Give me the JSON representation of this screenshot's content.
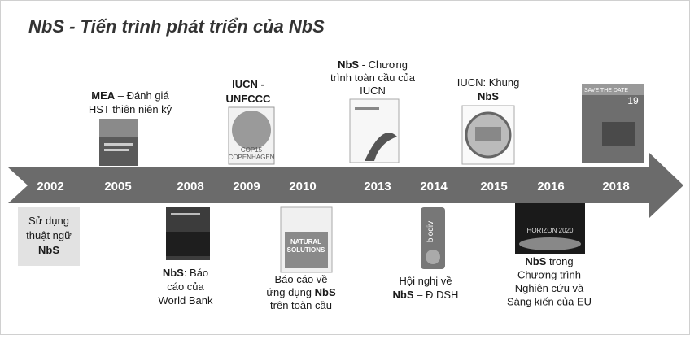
{
  "title": "NbS - Tiến trình phát triển của NbS",
  "years": [
    "2002",
    "2005",
    "2008",
    "2009",
    "2010",
    "2013",
    "2014",
    "2015",
    "2016",
    "2018"
  ],
  "milestones": [
    {
      "lines": [
        [
          {
            "text": "Sử dụng"
          }
        ],
        [
          {
            "text": "thuật ngữ"
          }
        ],
        [
          {
            "text": "NbS",
            "bold": true
          }
        ]
      ]
    },
    {
      "lines": [
        [
          {
            "text": "MEA",
            "bold": true
          },
          {
            "text": " – Đánh giá"
          }
        ],
        [
          {
            "text": "HST thiên niên kỷ"
          }
        ]
      ]
    },
    {
      "lines": [
        [
          {
            "text": "NbS",
            "bold": true
          },
          {
            "text": ": Báo"
          }
        ],
        [
          {
            "text": "cáo của"
          }
        ],
        [
          {
            "text": "World Bank"
          }
        ]
      ]
    },
    {
      "lines": [
        [
          {
            "text": "IUCN -",
            "bold": true
          }
        ],
        [
          {
            "text": "UNFCCC",
            "bold": true
          }
        ]
      ]
    },
    {
      "lines": [
        [
          {
            "text": "Báo cáo về"
          }
        ],
        [
          {
            "text": "ứng dụng "
          },
          {
            "text": "NbS",
            "bold": true
          }
        ],
        [
          {
            "text": "trên toàn cầu"
          }
        ]
      ]
    },
    {
      "lines": [
        [
          {
            "text": "NbS",
            "bold": true
          },
          {
            "text": " - Chương"
          }
        ],
        [
          {
            "text": "trình toàn cầu của"
          }
        ],
        [
          {
            "text": "IUCN"
          }
        ]
      ]
    },
    {
      "lines": [
        [
          {
            "text": "Hội nghị về"
          }
        ],
        [
          {
            "text": "NbS",
            "bold": true
          },
          {
            "text": " – Đ DSH"
          }
        ]
      ]
    },
    {
      "lines": [
        [
          {
            "text": "IUCN: Khung"
          }
        ],
        [
          {
            "text": "NbS",
            "bold": true
          }
        ]
      ]
    },
    {
      "lines": [
        [
          {
            "text": "NbS",
            "bold": true
          },
          {
            "text": " trong"
          }
        ],
        [
          {
            "text": "Chương trình"
          }
        ],
        [
          {
            "text": "Nghiên cứu và"
          }
        ],
        [
          {
            "text": "Sáng kiến của EU"
          }
        ]
      ]
    }
  ],
  "image_texts": {
    "cop15": "COP15",
    "copenhagen": "COPENHAGEN",
    "save_the_date": "SAVE THE DATE",
    "day": "19",
    "natural": "NATURAL",
    "solutions": "SOLUTIONS",
    "biodiv": "biodiv",
    "horizon": "HORIZON 2020"
  }
}
